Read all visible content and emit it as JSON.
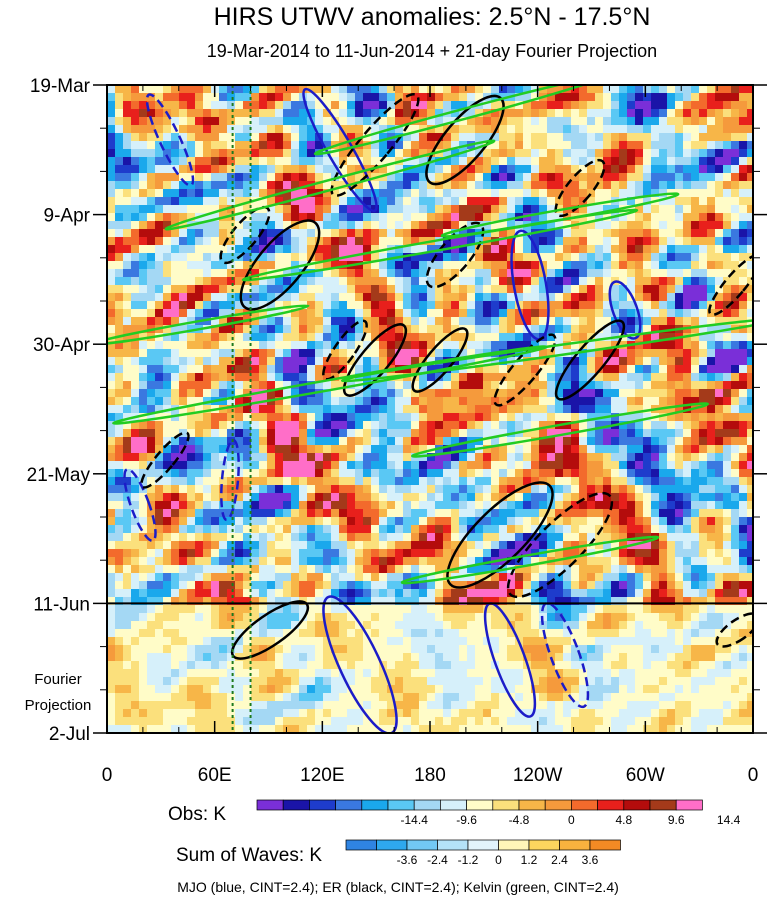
{
  "chart_data": {
    "type": "heatmap",
    "title": "HIRS UTWV anomalies: 2.5°N - 17.5°N",
    "subtitle": "19-Mar-2014 to 11-Jun-2014 + 21-day Fourier Projection",
    "x_axis": {
      "ticks": [
        "0",
        "60E",
        "120E",
        "180",
        "120W",
        "60W",
        "0"
      ],
      "tick_values_deg_east": [
        0,
        60,
        120,
        180,
        240,
        300,
        360
      ],
      "range": [
        0,
        360
      ]
    },
    "y_axis": {
      "ticks": [
        "19-Mar",
        "9-Apr",
        "30-Apr",
        "21-May",
        "11-Jun",
        "2-Jul"
      ],
      "tick_values_day": [
        0,
        21,
        42,
        63,
        84,
        105
      ],
      "range_days": [
        0,
        105
      ],
      "direction": "downward",
      "projection_start_day": 84
    },
    "projection_label": [
      "Fourier",
      "Projection"
    ],
    "obs_colorbar": {
      "label": "Obs: K",
      "levels": [
        "-14.4",
        "-9.6",
        "-4.8",
        "0",
        "4.8",
        "9.6",
        "14.4"
      ],
      "level_values": [
        -14.4,
        -9.6,
        -4.8,
        0,
        4.8,
        9.6,
        14.4
      ],
      "colors": [
        "#7a2fd8",
        "#1a14a8",
        "#1e3ccc",
        "#3a78e0",
        "#1aa8ec",
        "#5ac8f4",
        "#a4d8f4",
        "#d6f0fa",
        "#fffcc8",
        "#fbe07c",
        "#f7b648",
        "#f59a3c",
        "#f36a2c",
        "#e8201c",
        "#b40c0c",
        "#a43a1a",
        "#ff6ec8"
      ]
    },
    "waves_colorbar": {
      "label": "Sum of Waves: K",
      "levels": [
        "-3.6",
        "-2.4",
        "-1.2",
        "0",
        "1.2",
        "2.4",
        "3.6"
      ],
      "level_values": [
        -3.6,
        -2.4,
        -1.2,
        0,
        1.2,
        2.4,
        3.6
      ],
      "colors": [
        "#2f84e2",
        "#2ea8ee",
        "#72c8f4",
        "#b4e2f8",
        "#e2f4fb",
        "#fff6b8",
        "#fcd65e",
        "#f9b23e",
        "#f38a24"
      ]
    },
    "overlay_contours": [
      {
        "name": "MJO",
        "color": "#1c1cc8",
        "cint": 2.4
      },
      {
        "name": "ER",
        "color": "#000000",
        "cint": 2.4
      },
      {
        "name": "Kelvin",
        "color": "#22cc22",
        "cint": 2.4
      }
    ],
    "reference_lines_deg_east": [
      70,
      80
    ],
    "footer": "MJO (blue, CINT=2.4); ER (black, CINT=2.4); Kelvin (green, CINT=2.4)"
  }
}
